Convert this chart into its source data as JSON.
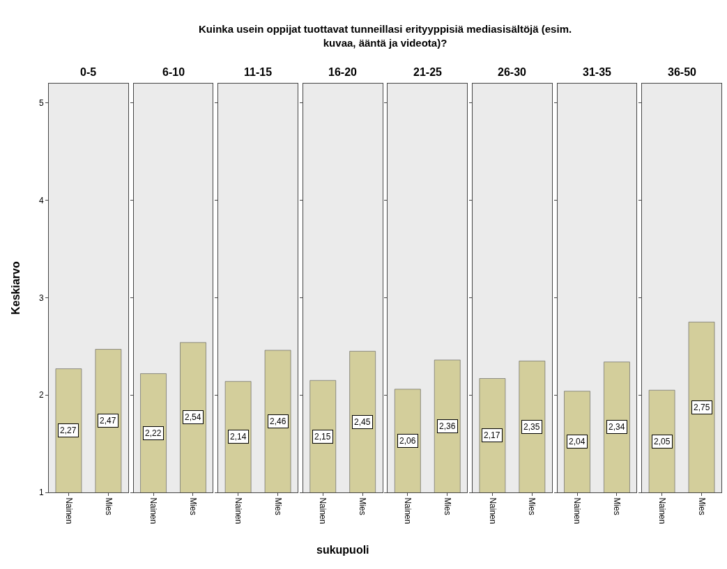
{
  "chart_data": [
    {
      "type": "bar",
      "title": "0-5",
      "annotations": [
        "Kuinka usein oppijat tuottavat tunneillasi erityyppisiä mediasisältöjä (esim.\nkuvaa, ääntä ja videota)?"
      ],
      "ylabel": "Keskiarvo",
      "categories": [
        "Nainen",
        "Mies"
      ],
      "values": [
        2.27,
        2.47
      ],
      "value_labels": [
        "2,27",
        "2,47"
      ],
      "color": "#d3ce9b",
      "ylim": [
        1,
        5.2
      ],
      "yticks": [
        1,
        2,
        3,
        4,
        5
      ]
    },
    {
      "type": "bar",
      "title": "6-10",
      "categories": [
        "Nainen",
        "Mies"
      ],
      "values": [
        2.22,
        2.54
      ],
      "value_labels": [
        "2,22",
        "2,54"
      ],
      "color": "#d3ce9b",
      "ylim": [
        1,
        5.2
      ],
      "yticks": [
        1,
        2,
        3,
        4,
        5
      ],
      "tick_labels": "x"
    },
    {
      "type": "bar",
      "title": "11-15",
      "categories": [
        "Nainen",
        "Mies"
      ],
      "values": [
        2.14,
        2.46
      ],
      "value_labels": [
        "2,14",
        "2,46"
      ],
      "color": "#d3ce9b",
      "ylim": [
        1,
        5.2
      ],
      "yticks": [
        1,
        2,
        3,
        4,
        5
      ],
      "tick_labels": "x"
    },
    {
      "type": "bar",
      "title": "16-20",
      "xlabel": "sukupuoli",
      "categories": [
        "Nainen",
        "Mies"
      ],
      "values": [
        2.15,
        2.45
      ],
      "value_labels": [
        "2,15",
        "2,45"
      ],
      "color": "#d3ce9b",
      "ylim": [
        1,
        5.2
      ],
      "yticks": [
        1,
        2,
        3,
        4,
        5
      ],
      "tick_labels": "x"
    },
    {
      "type": "bar",
      "title": "21-25",
      "categories": [
        "Nainen",
        "Mies"
      ],
      "values": [
        2.06,
        2.36
      ],
      "value_labels": [
        "2,06",
        "2,36"
      ],
      "color": "#d3ce9b",
      "ylim": [
        1,
        5.2
      ],
      "yticks": [
        1,
        2,
        3,
        4,
        5
      ],
      "tick_labels": "x"
    },
    {
      "type": "bar",
      "title": "26-30",
      "categories": [
        "Nainen",
        "Mies"
      ],
      "values": [
        2.17,
        2.35
      ],
      "value_labels": [
        "2,17",
        "2,35"
      ],
      "color": "#d3ce9b",
      "ylim": [
        1,
        5.2
      ],
      "yticks": [
        1,
        2,
        3,
        4,
        5
      ],
      "tick_labels": "x"
    },
    {
      "type": "bar",
      "title": "31-35",
      "categories": [
        "Nainen",
        "Mies"
      ],
      "values": [
        2.04,
        2.34
      ],
      "value_labels": [
        "2,04",
        "2,34"
      ],
      "color": "#d3ce9b",
      "ylim": [
        1,
        5.2
      ],
      "yticks": [
        1,
        2,
        3,
        4,
        5
      ],
      "tick_labels": "x"
    },
    {
      "type": "bar",
      "title": "36-50",
      "categories": [
        "Nainen",
        "Mies"
      ],
      "values": [
        2.05,
        2.75
      ],
      "value_labels": [
        "2,05",
        "2,75"
      ],
      "color": "#d3ce9b",
      "ylim": [
        1,
        5.2
      ],
      "yticks": [
        1,
        2,
        3,
        4,
        5
      ],
      "tick_labels": "x"
    }
  ]
}
